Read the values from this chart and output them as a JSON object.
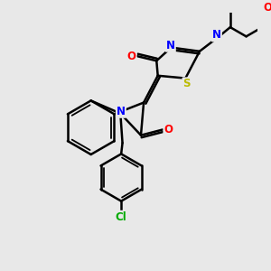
{
  "bg_color": "#e8e8e8",
  "bond_color": "#000000",
  "bond_width": 1.8,
  "atom_colors": {
    "N": "#0000ff",
    "O": "#ff0000",
    "S": "#bbbb00",
    "Cl": "#00aa00",
    "C": "#000000"
  }
}
